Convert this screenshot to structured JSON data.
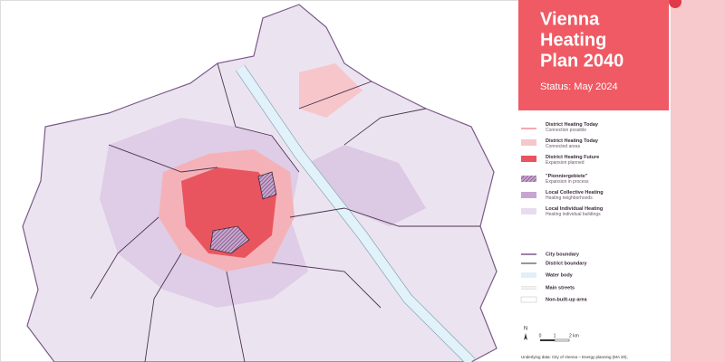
{
  "header": {
    "title_lines": [
      "Vienna",
      "Heating",
      "Plan 2040"
    ],
    "status": "Status: May 2024"
  },
  "legend": {
    "heating": [
      {
        "label": "District Heating Today",
        "sublabel": "Connection possible"
      },
      {
        "label": "District Heating Today",
        "sublabel": "Connected areas"
      },
      {
        "label": "District Heating Future",
        "sublabel": "Expansion planned"
      },
      {
        "label": "\"Pionniergebiete\"",
        "sublabel": "Expansion in process"
      },
      {
        "label": "Local Collective Heating",
        "sublabel": "Heating neighborhoods"
      },
      {
        "label": "Local Individual Heating",
        "sublabel": "Heating individual buildings"
      }
    ],
    "features": [
      "City boundary",
      "District boundary",
      "Water body",
      "Main streets",
      "Non-built-up area"
    ]
  },
  "scale": {
    "north": "N",
    "labels": [
      "0",
      "1",
      "2 km"
    ]
  },
  "footnote": "Underlying data: City of Vienna – Energy planning (MA 20),"
}
